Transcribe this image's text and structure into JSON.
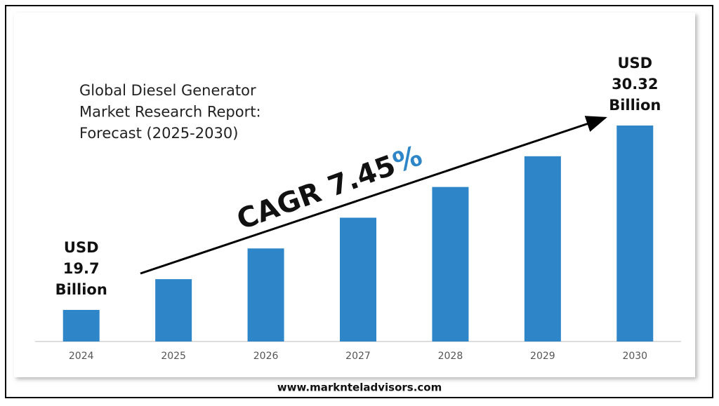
{
  "chart_data": {
    "type": "bar",
    "title": "Global Diesel Generator Market Research Report: Forecast (2025-2030)",
    "categories": [
      "2024",
      "2025",
      "2026",
      "2027",
      "2028",
      "2029",
      "2030"
    ],
    "values": [
      19.7,
      21.47,
      23.24,
      25.01,
      26.78,
      28.55,
      30.32
    ],
    "value_labels": [
      "USD 19.7 Billion",
      null,
      null,
      null,
      null,
      null,
      "USD 30.32 Billion"
    ],
    "color": "#2e86c8",
    "ylim": [
      17.88,
      30.32
    ],
    "annotation": "CAGR 7.45%",
    "source": "www.marknteladvisors.com"
  }
}
